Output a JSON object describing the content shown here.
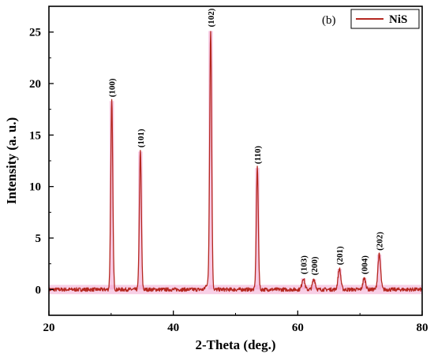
{
  "chart_data": {
    "type": "line",
    "panel_label": "(b)",
    "xlabel": "2-Theta (deg.)",
    "ylabel": "Intensity (a. u.)",
    "xlim": [
      20,
      80
    ],
    "ylim": [
      -2.5,
      27.5
    ],
    "xticks": [
      20,
      40,
      60,
      80
    ],
    "yticks": [
      0,
      5,
      10,
      15,
      20,
      25
    ],
    "grid": false,
    "legend": {
      "position": "top-right",
      "entries": [
        "NiS"
      ]
    },
    "colors": {
      "line": "#b5271f",
      "band": "#f2a7d2"
    },
    "series": [
      {
        "name": "NiS",
        "baseline": 0,
        "noise_amplitude": 0.18,
        "peaks": [
          {
            "label": "(100)",
            "x": 30.1,
            "y": 18.3
          },
          {
            "label": "(101)",
            "x": 34.7,
            "y": 13.4
          },
          {
            "label": "(102)",
            "x": 46.0,
            "y": 25.1
          },
          {
            "label": "(110)",
            "x": 53.5,
            "y": 11.8
          },
          {
            "label": "(103)",
            "x": 60.9,
            "y": 1.1
          },
          {
            "label": "(200)",
            "x": 62.6,
            "y": 1.0
          },
          {
            "label": "(201)",
            "x": 66.7,
            "y": 2.0
          },
          {
            "label": "(004)",
            "x": 70.7,
            "y": 1.1
          },
          {
            "label": "(202)",
            "x": 73.1,
            "y": 3.4
          }
        ]
      }
    ]
  }
}
